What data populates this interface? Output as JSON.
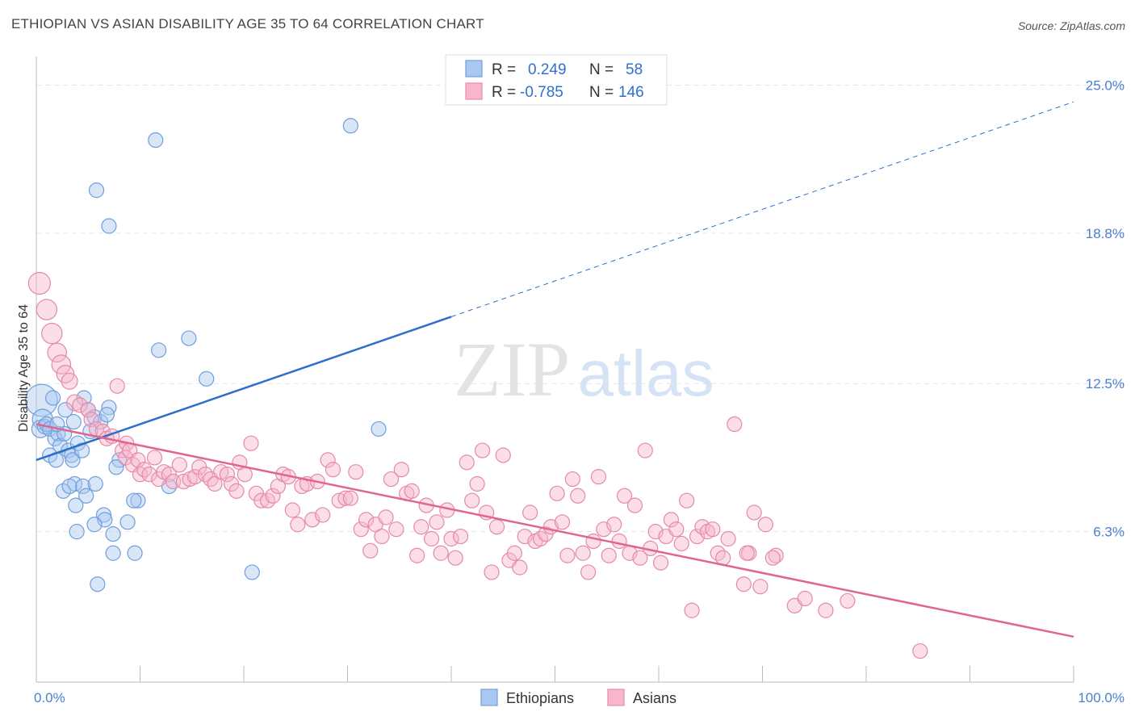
{
  "header": {
    "title": "ETHIOPIAN VS ASIAN DISABILITY AGE 35 TO 64 CORRELATION CHART",
    "source": "Source: ZipAtlas.com"
  },
  "watermark": {
    "zip": "ZIP",
    "atlas": "atlas"
  },
  "colors": {
    "ethiopians_fill": "#a9c7f0",
    "ethiopians_stroke": "#6f9fdc",
    "ethiopians_line": "#2b6fcc",
    "asians_fill": "#f7b6cb",
    "asians_stroke": "#e48aa9",
    "asians_line": "#e06690",
    "value_text": "#2f6fd0"
  },
  "legend": {
    "r_label": "R =",
    "n_label": "N =",
    "rows": [
      {
        "r": "0.249",
        "n": "58"
      },
      {
        "r": "-0.785",
        "n": "146"
      }
    ]
  },
  "bottom_legend": [
    "Ethiopians",
    "Asians"
  ],
  "chart_data": {
    "type": "scatter",
    "xlabel": "",
    "ylabel": "Disability Age 35 to 64",
    "xlim": [
      0,
      100
    ],
    "ylim": [
      0,
      26.2
    ],
    "x_tick_labels": [
      "0.0%",
      "100.0%"
    ],
    "y_ticks": [
      6.3,
      12.5,
      18.8,
      25.0
    ],
    "y_tick_labels": [
      "6.3%",
      "12.5%",
      "18.8%",
      "25.0%"
    ],
    "grid": true,
    "legend_position": "top-center",
    "series": [
      {
        "name": "Ethiopians",
        "r": 0.249,
        "n": 58,
        "trend": {
          "x0": 0,
          "y0": 9.3,
          "x1": 40,
          "y1": 15.3,
          "dashed_to_x": 100,
          "dashed_to_y": 24.3
        },
        "points": [
          [
            0.5,
            11.8,
            2.2
          ],
          [
            0.6,
            11.0,
            1.4
          ],
          [
            0.4,
            10.6,
            1.2
          ],
          [
            0.8,
            10.7,
            1.0
          ],
          [
            1.0,
            10.8,
            1.0
          ],
          [
            1.3,
            10.6,
            1.0
          ],
          [
            1.6,
            11.9,
            1.0
          ],
          [
            1.8,
            10.2,
            1.0
          ],
          [
            2.1,
            10.4,
            1.0
          ],
          [
            2.3,
            9.9,
            1.0
          ],
          [
            2.7,
            10.4,
            1.0
          ],
          [
            2.8,
            11.4,
            1.0
          ],
          [
            3.1,
            9.7,
            1.0
          ],
          [
            3.4,
            9.5,
            1.0
          ],
          [
            3.6,
            10.9,
            1.0
          ],
          [
            1.3,
            9.5,
            1.0
          ],
          [
            1.9,
            9.3,
            1.0
          ],
          [
            3.5,
            9.3,
            1.0
          ],
          [
            4.0,
            10.0,
            1.0
          ],
          [
            4.4,
            9.7,
            1.0
          ],
          [
            4.6,
            11.9,
            1.0
          ],
          [
            5.0,
            11.4,
            1.0
          ],
          [
            5.2,
            10.5,
            1.0
          ],
          [
            5.6,
            11.1,
            1.0
          ],
          [
            6.2,
            10.9,
            1.0
          ],
          [
            7.0,
            11.5,
            1.0
          ],
          [
            8.0,
            9.3,
            1.0
          ],
          [
            7.7,
            9.0,
            1.0
          ],
          [
            3.7,
            8.3,
            1.0
          ],
          [
            2.6,
            8.0,
            1.0
          ],
          [
            3.2,
            8.2,
            1.0
          ],
          [
            4.5,
            8.2,
            1.0
          ],
          [
            4.8,
            7.8,
            1.0
          ],
          [
            5.7,
            8.3,
            1.0
          ],
          [
            3.8,
            7.4,
            1.0
          ],
          [
            6.5,
            7.0,
            1.0
          ],
          [
            6.6,
            6.8,
            1.0
          ],
          [
            5.6,
            6.6,
            1.0
          ],
          [
            3.9,
            6.3,
            1.0
          ],
          [
            7.4,
            6.2,
            1.0
          ],
          [
            8.8,
            6.7,
            1.0
          ],
          [
            9.8,
            7.6,
            1.0
          ],
          [
            9.4,
            7.6,
            1.0
          ],
          [
            7.4,
            5.4,
            1.0
          ],
          [
            9.5,
            5.4,
            1.0
          ],
          [
            5.9,
            4.1,
            1.0
          ],
          [
            12.8,
            8.2,
            1.0
          ],
          [
            11.8,
            13.9,
            1.0
          ],
          [
            14.7,
            14.4,
            1.0
          ],
          [
            16.4,
            12.7,
            1.0
          ],
          [
            20.8,
            4.6,
            1.0
          ],
          [
            33.0,
            10.6,
            1.0
          ],
          [
            11.5,
            22.7,
            1.0
          ],
          [
            5.8,
            20.6,
            1.0
          ],
          [
            7.0,
            19.1,
            1.0
          ],
          [
            30.3,
            23.3,
            1.0
          ],
          [
            2.0,
            10.8,
            1.0
          ],
          [
            6.8,
            11.2,
            1.0
          ]
        ]
      },
      {
        "name": "Asians",
        "r": -0.785,
        "n": 146,
        "trend": {
          "x0": 0,
          "y0": 10.8,
          "x1": 100,
          "y1": 1.9
        },
        "points": [
          [
            0.3,
            16.7,
            1.5
          ],
          [
            1.0,
            15.6,
            1.4
          ],
          [
            1.5,
            14.6,
            1.4
          ],
          [
            2.0,
            13.8,
            1.3
          ],
          [
            2.4,
            13.3,
            1.3
          ],
          [
            2.8,
            12.9,
            1.2
          ],
          [
            3.2,
            12.6,
            1.1
          ],
          [
            3.7,
            11.7,
            1.1
          ],
          [
            4.2,
            11.6,
            1.0
          ],
          [
            5.0,
            11.4,
            1.0
          ],
          [
            5.3,
            11.0,
            1.0
          ],
          [
            5.8,
            10.6,
            1.0
          ],
          [
            6.4,
            10.5,
            1.0
          ],
          [
            6.8,
            10.2,
            1.0
          ],
          [
            7.3,
            10.3,
            1.0
          ],
          [
            7.8,
            12.4,
            1.0
          ],
          [
            8.3,
            9.7,
            1.0
          ],
          [
            8.6,
            9.4,
            1.0
          ],
          [
            8.7,
            10.0,
            1.0
          ],
          [
            9.0,
            9.7,
            1.0
          ],
          [
            9.3,
            9.1,
            1.0
          ],
          [
            9.8,
            9.3,
            1.0
          ],
          [
            10.0,
            8.7,
            1.0
          ],
          [
            10.4,
            8.9,
            1.0
          ],
          [
            10.9,
            8.7,
            1.0
          ],
          [
            11.4,
            9.4,
            1.0
          ],
          [
            11.8,
            8.5,
            1.0
          ],
          [
            12.3,
            8.8,
            1.0
          ],
          [
            12.8,
            8.7,
            1.0
          ],
          [
            13.2,
            8.4,
            1.0
          ],
          [
            13.8,
            9.1,
            1.0
          ],
          [
            14.2,
            8.4,
            1.0
          ],
          [
            14.8,
            8.5,
            1.0
          ],
          [
            15.3,
            8.6,
            1.0
          ],
          [
            15.7,
            9.0,
            1.0
          ],
          [
            16.3,
            8.7,
            1.0
          ],
          [
            16.8,
            8.5,
            1.0
          ],
          [
            17.2,
            8.3,
            1.0
          ],
          [
            17.8,
            8.8,
            1.0
          ],
          [
            18.4,
            8.7,
            1.0
          ],
          [
            18.8,
            8.3,
            1.0
          ],
          [
            19.3,
            8.0,
            1.0
          ],
          [
            19.6,
            9.2,
            1.0
          ],
          [
            20.1,
            8.7,
            1.0
          ],
          [
            20.7,
            10.0,
            1.0
          ],
          [
            21.2,
            7.9,
            1.0
          ],
          [
            21.7,
            7.6,
            1.0
          ],
          [
            22.3,
            7.6,
            1.0
          ],
          [
            22.8,
            7.8,
            1.0
          ],
          [
            23.3,
            8.2,
            1.0
          ],
          [
            23.8,
            8.7,
            1.0
          ],
          [
            24.3,
            8.6,
            1.0
          ],
          [
            24.7,
            7.2,
            1.0
          ],
          [
            25.2,
            6.6,
            1.0
          ],
          [
            25.6,
            8.2,
            1.0
          ],
          [
            26.1,
            8.3,
            1.0
          ],
          [
            26.6,
            6.8,
            1.0
          ],
          [
            27.1,
            8.4,
            1.0
          ],
          [
            27.6,
            7.0,
            1.0
          ],
          [
            28.1,
            9.3,
            1.0
          ],
          [
            28.6,
            8.9,
            1.0
          ],
          [
            29.2,
            7.6,
            1.0
          ],
          [
            29.8,
            7.7,
            1.0
          ],
          [
            30.3,
            7.7,
            1.0
          ],
          [
            30.8,
            8.8,
            1.0
          ],
          [
            31.3,
            6.4,
            1.0
          ],
          [
            31.8,
            6.8,
            1.0
          ],
          [
            32.2,
            5.5,
            1.0
          ],
          [
            32.7,
            6.6,
            1.0
          ],
          [
            33.3,
            6.1,
            1.0
          ],
          [
            33.7,
            6.9,
            1.0
          ],
          [
            34.2,
            8.5,
            1.0
          ],
          [
            34.7,
            6.4,
            1.0
          ],
          [
            35.2,
            8.9,
            1.0
          ],
          [
            35.7,
            7.9,
            1.0
          ],
          [
            36.2,
            8.0,
            1.0
          ],
          [
            36.7,
            5.3,
            1.0
          ],
          [
            37.1,
            6.5,
            1.0
          ],
          [
            37.6,
            7.4,
            1.0
          ],
          [
            38.1,
            6.0,
            1.0
          ],
          [
            38.6,
            6.7,
            1.0
          ],
          [
            39.0,
            5.4,
            1.0
          ],
          [
            39.6,
            7.2,
            1.0
          ],
          [
            40.0,
            6.0,
            1.0
          ],
          [
            40.4,
            5.2,
            1.0
          ],
          [
            40.9,
            6.1,
            1.0
          ],
          [
            41.5,
            9.2,
            1.0
          ],
          [
            42.0,
            7.6,
            1.0
          ],
          [
            42.5,
            8.3,
            1.0
          ],
          [
            43.0,
            9.7,
            1.0
          ],
          [
            43.4,
            7.1,
            1.0
          ],
          [
            43.9,
            4.6,
            1.0
          ],
          [
            44.4,
            6.5,
            1.0
          ],
          [
            45.0,
            9.5,
            1.0
          ],
          [
            45.6,
            5.1,
            1.0
          ],
          [
            46.1,
            5.4,
            1.0
          ],
          [
            46.6,
            4.8,
            1.0
          ],
          [
            47.1,
            6.1,
            1.0
          ],
          [
            47.6,
            7.1,
            1.0
          ],
          [
            48.1,
            5.9,
            1.0
          ],
          [
            48.6,
            6.0,
            1.0
          ],
          [
            49.1,
            6.2,
            1.0
          ],
          [
            49.6,
            6.5,
            1.0
          ],
          [
            50.2,
            7.9,
            1.0
          ],
          [
            50.7,
            6.7,
            1.0
          ],
          [
            51.2,
            5.3,
            1.0
          ],
          [
            51.7,
            8.5,
            1.0
          ],
          [
            52.2,
            7.8,
            1.0
          ],
          [
            52.7,
            5.4,
            1.0
          ],
          [
            53.2,
            4.6,
            1.0
          ],
          [
            53.7,
            5.9,
            1.0
          ],
          [
            54.2,
            8.6,
            1.0
          ],
          [
            54.7,
            6.4,
            1.0
          ],
          [
            55.2,
            5.3,
            1.0
          ],
          [
            55.7,
            6.6,
            1.0
          ],
          [
            56.2,
            5.9,
            1.0
          ],
          [
            56.7,
            7.8,
            1.0
          ],
          [
            57.2,
            5.4,
            1.0
          ],
          [
            57.7,
            7.4,
            1.0
          ],
          [
            58.2,
            5.2,
            1.0
          ],
          [
            58.7,
            9.7,
            1.0
          ],
          [
            59.2,
            5.6,
            1.0
          ],
          [
            59.7,
            6.3,
            1.0
          ],
          [
            60.2,
            5.0,
            1.0
          ],
          [
            60.7,
            6.1,
            1.0
          ],
          [
            61.2,
            6.8,
            1.0
          ],
          [
            61.7,
            6.4,
            1.0
          ],
          [
            62.2,
            5.8,
            1.0
          ],
          [
            62.7,
            7.6,
            1.0
          ],
          [
            63.2,
            3.0,
            1.0
          ],
          [
            63.7,
            6.1,
            1.0
          ],
          [
            64.2,
            6.5,
            1.0
          ],
          [
            64.7,
            6.3,
            1.0
          ],
          [
            65.2,
            6.4,
            1.0
          ],
          [
            65.7,
            5.4,
            1.0
          ],
          [
            66.2,
            5.2,
            1.0
          ],
          [
            66.7,
            6.0,
            1.0
          ],
          [
            67.3,
            10.8,
            1.0
          ],
          [
            68.2,
            4.1,
            1.0
          ],
          [
            68.7,
            5.4,
            1.0
          ],
          [
            69.2,
            7.1,
            1.0
          ],
          [
            69.8,
            4.0,
            1.0
          ],
          [
            70.3,
            6.6,
            1.0
          ],
          [
            71.3,
            5.3,
            1.0
          ],
          [
            73.1,
            3.2,
            1.0
          ],
          [
            74.1,
            3.5,
            1.0
          ],
          [
            76.1,
            3.0,
            1.0
          ],
          [
            78.2,
            3.4,
            1.0
          ],
          [
            68.5,
            5.4,
            1.0
          ],
          [
            71.0,
            5.2,
            1.0
          ],
          [
            85.2,
            1.3,
            1.0
          ]
        ]
      }
    ]
  }
}
